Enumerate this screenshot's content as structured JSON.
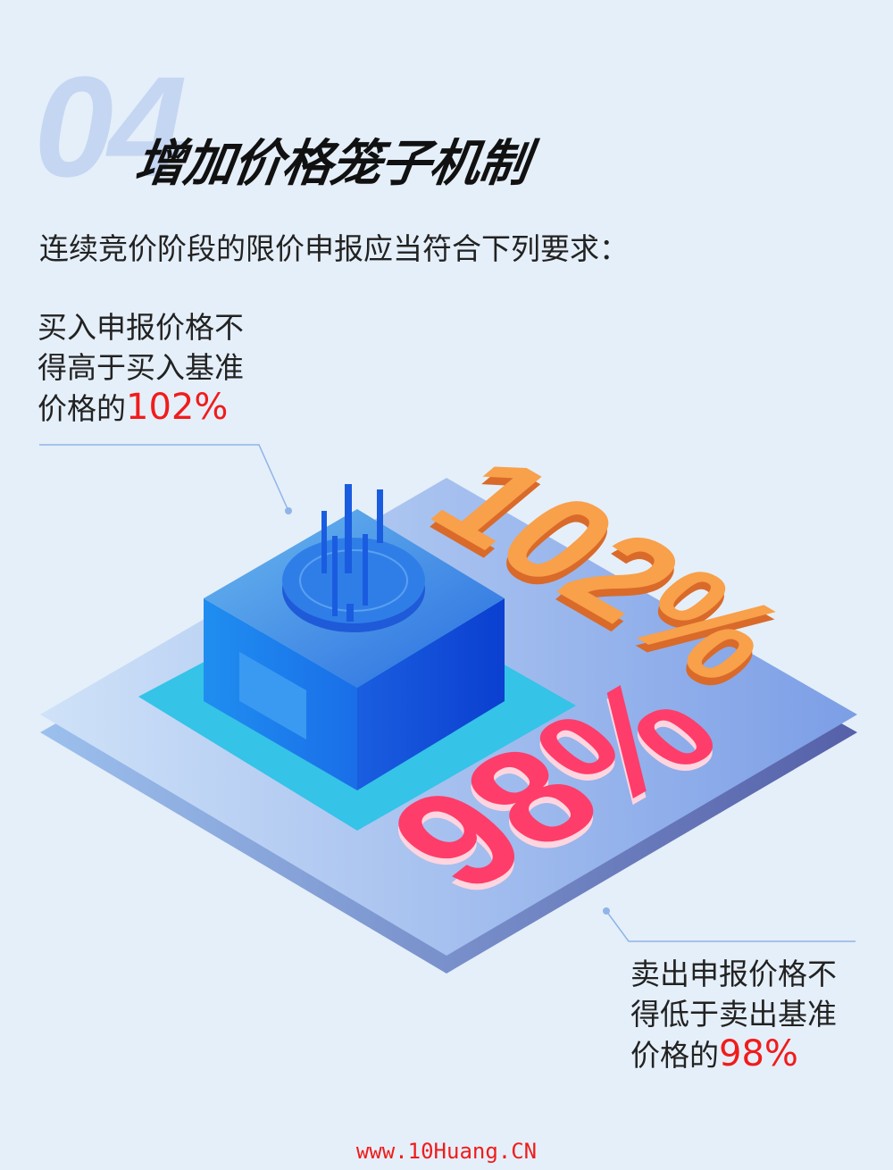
{
  "section_number": "04",
  "title": "增加价格笼子机制",
  "subtitle": "连续竞价阶段的限价申报应当符合下列要求：",
  "buy_rule": {
    "line1": "买入申报价格不",
    "line2": "得高于买入基准",
    "line3_prefix": "价格的",
    "value": "102%"
  },
  "sell_rule": {
    "line1": "卖出申报价格不",
    "line2": "得低于卖出基准",
    "line3_prefix": "价格的",
    "value": "98%"
  },
  "illustration": {
    "upper_label": "102%",
    "lower_label": "98%",
    "upper_color": "#f58a3a",
    "lower_color": "#ff3d6a",
    "highlight_color": "#f01c1c"
  },
  "footer": "www.10Huang.CN"
}
